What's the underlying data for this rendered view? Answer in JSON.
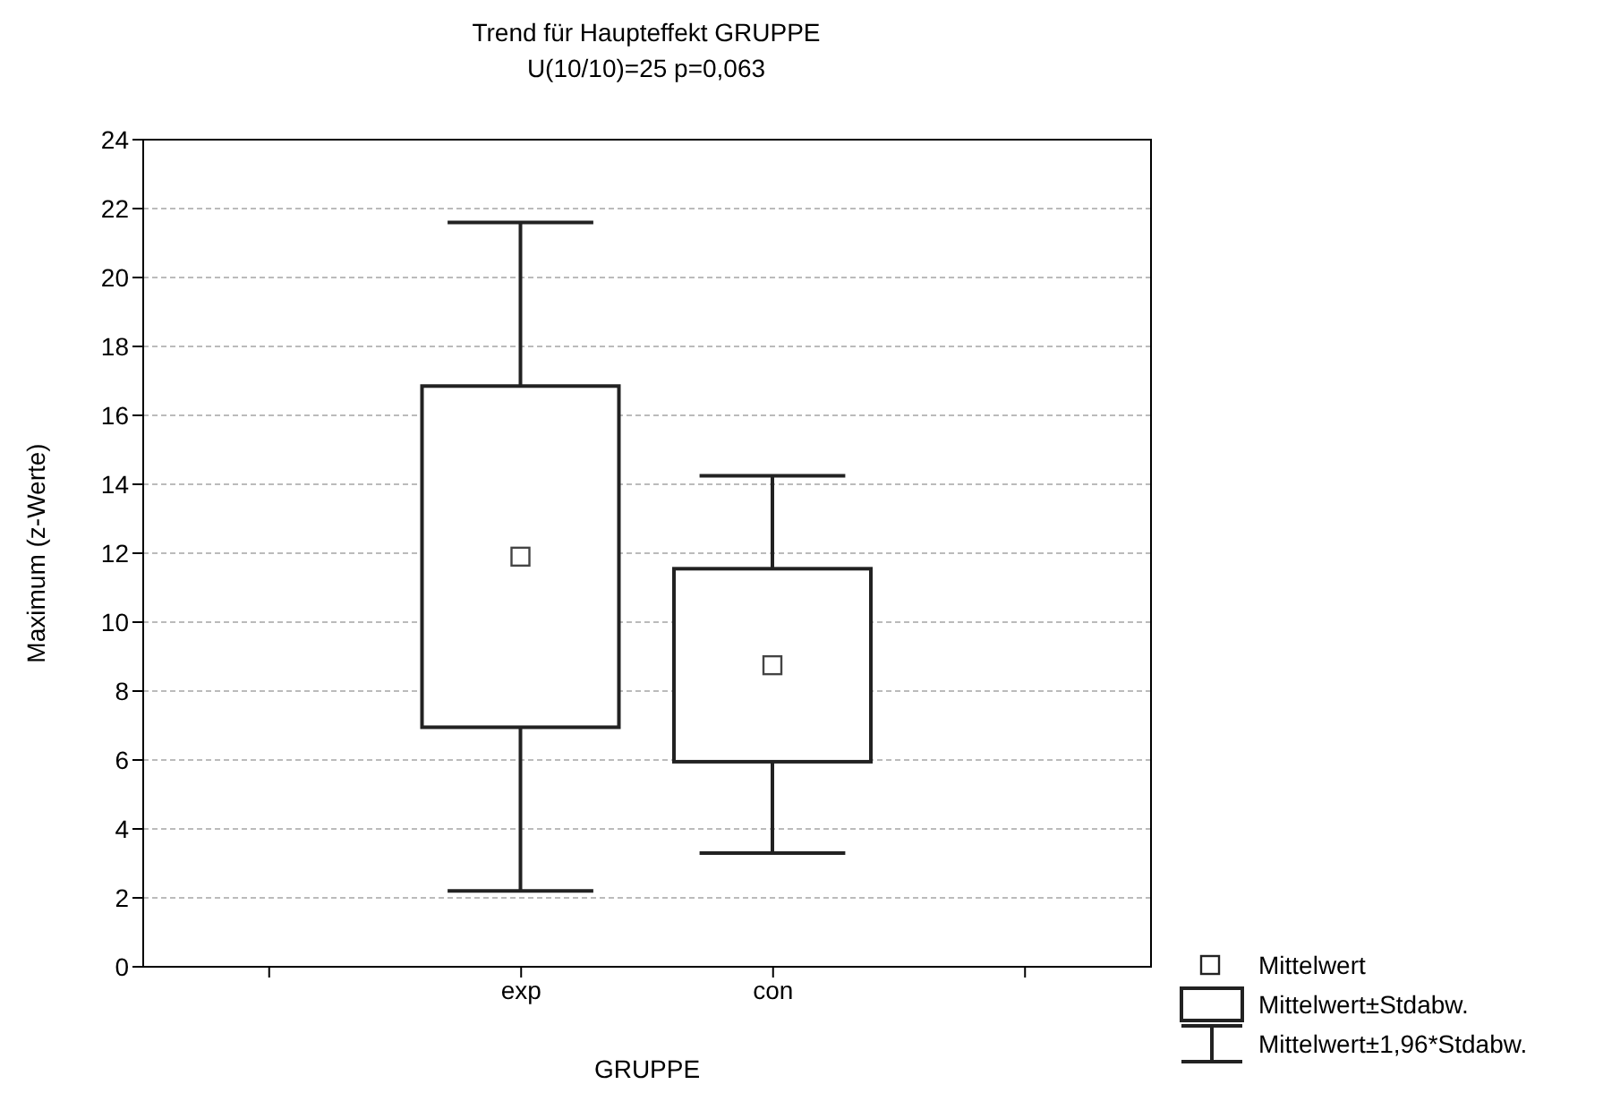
{
  "chart_data": {
    "type": "box",
    "title": "Trend für Haupteffekt GRUPPE",
    "subtitle": "U(10/10)=25 p=0,063",
    "xlabel": "GRUPPE",
    "ylabel": "Maximum (z-Werte)",
    "categories": [
      null,
      "exp",
      "con",
      null
    ],
    "boxes": [
      null,
      {
        "low": 2.2,
        "q1": 6.95,
        "q3": 16.85,
        "high": 21.6,
        "mean": 11.9
      },
      {
        "low": 3.3,
        "q1": 5.95,
        "q3": 11.55,
        "high": 14.25,
        "mean": 8.75
      },
      null
    ],
    "ylim": [
      0,
      24
    ],
    "yticks": [
      0,
      2,
      4,
      6,
      8,
      10,
      12,
      14,
      16,
      18,
      20,
      22,
      24
    ],
    "grid": "y",
    "annotations": [
      "Mittelwert",
      "Mittelwert±Stdabw.",
      "Mittelwert±1,96*Stdabw."
    ]
  }
}
